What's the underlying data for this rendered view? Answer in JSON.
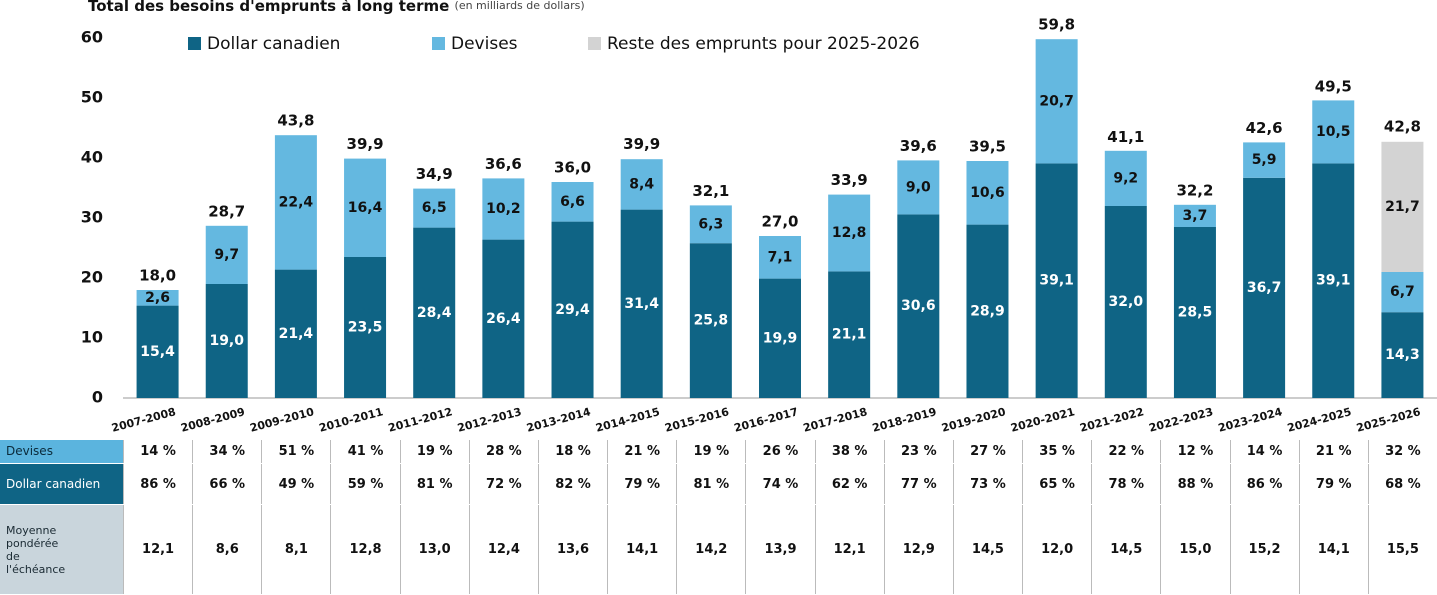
{
  "chart_data": {
    "type": "stacked-bar",
    "title": "Total des besoins d'emprunts à long terme",
    "subtitle": "(en milliards de dollars)",
    "categories": [
      "2007-2008",
      "2008-2009",
      "2009-2010",
      "2010-2011",
      "2011-2012",
      "2012-2013",
      "2013-2014",
      "2014-2015",
      "2015-2016",
      "2016-2017",
      "2017-2018",
      "2018-2019",
      "2019-2020",
      "2020-2021",
      "2021-2022",
      "2022-2023",
      "2023-2024",
      "2024-2025",
      "2025-2026"
    ],
    "series": [
      {
        "name": "Dollar canadien",
        "color": "#0f6485",
        "values": [
          15.4,
          19.0,
          21.4,
          23.5,
          28.4,
          26.4,
          29.4,
          31.4,
          25.8,
          19.9,
          21.1,
          30.6,
          28.9,
          39.1,
          32.0,
          28.5,
          36.7,
          39.1,
          14.3
        ],
        "value_labels": [
          "15,4",
          "19,0",
          "21,4",
          "23,5",
          "28,4",
          "26,4",
          "29,4",
          "31,4",
          "25,8",
          "19,9",
          "21,1",
          "30,6",
          "28,9",
          "39,1",
          "32,0",
          "28,5",
          "36,7",
          "39,1",
          "14,3"
        ]
      },
      {
        "name": "Devises",
        "color": "#64b8e0",
        "values": [
          2.6,
          9.7,
          22.4,
          16.4,
          6.5,
          10.2,
          6.6,
          8.4,
          6.3,
          7.1,
          12.8,
          9.0,
          10.6,
          20.7,
          9.2,
          3.7,
          5.9,
          10.5,
          6.7
        ],
        "value_labels": [
          "2,6",
          "9,7",
          "22,4",
          "16,4",
          "6,5",
          "10,2",
          "6,6",
          "8,4",
          "6,3",
          "7,1",
          "12,8",
          "9,0",
          "10,6",
          "20,7",
          "9,2",
          "3,7",
          "5,9",
          "10,5",
          "6,7"
        ]
      },
      {
        "name": "Reste des emprunts pour 2025-2026",
        "color": "#d3d3d3",
        "values": [
          null,
          null,
          null,
          null,
          null,
          null,
          null,
          null,
          null,
          null,
          null,
          null,
          null,
          null,
          null,
          null,
          null,
          null,
          21.7
        ],
        "value_labels": [
          null,
          null,
          null,
          null,
          null,
          null,
          null,
          null,
          null,
          null,
          null,
          null,
          null,
          null,
          null,
          null,
          null,
          null,
          "21,7"
        ]
      }
    ],
    "totals": {
      "values": [
        18.0,
        28.7,
        43.8,
        39.9,
        34.9,
        36.6,
        36.0,
        39.9,
        32.1,
        27.0,
        33.9,
        39.6,
        39.5,
        59.8,
        41.1,
        32.2,
        42.6,
        49.5,
        42.8
      ],
      "value_labels": [
        "18,0",
        "28,7",
        "43,8",
        "39,9",
        "34,9",
        "36,6",
        "36,0",
        "39,9",
        "32,1",
        "27,0",
        "33,9",
        "39,6",
        "39,5",
        "59,8",
        "41,1",
        "32,2",
        "42,6",
        "49,5",
        "42,8"
      ]
    },
    "ylim": [
      0,
      60
    ],
    "yticks": [
      0,
      10,
      20,
      30,
      40,
      50,
      60
    ],
    "grid": false,
    "table": {
      "rows": [
        {
          "label": "Devises",
          "cells": [
            "14 %",
            "34 %",
            "51 %",
            "41 %",
            "19 %",
            "28 %",
            "18 %",
            "21 %",
            "19 %",
            "26 %",
            "38 %",
            "23 %",
            "27 %",
            "35 %",
            "22 %",
            "12 %",
            "14 %",
            "21 %",
            "32 %"
          ]
        },
        {
          "label": "Dollar canadien",
          "cells": [
            "86 %",
            "66 %",
            "49 %",
            "59 %",
            "81 %",
            "72 %",
            "82 %",
            "79 %",
            "81 %",
            "74 %",
            "62 %",
            "77 %",
            "73 %",
            "65 %",
            "78 %",
            "88 %",
            "86 %",
            "79 %",
            "68 %"
          ]
        },
        {
          "label": "Moyenne pondérée de l'échéance",
          "cells": [
            "12,1",
            "8,6",
            "8,1",
            "12,8",
            "13,0",
            "12,4",
            "13,6",
            "14,1",
            "14,2",
            "13,9",
            "12,1",
            "12,9",
            "14,5",
            "12,0",
            "14,5",
            "15,0",
            "15,2",
            "14,1",
            "15,5"
          ]
        }
      ]
    }
  }
}
